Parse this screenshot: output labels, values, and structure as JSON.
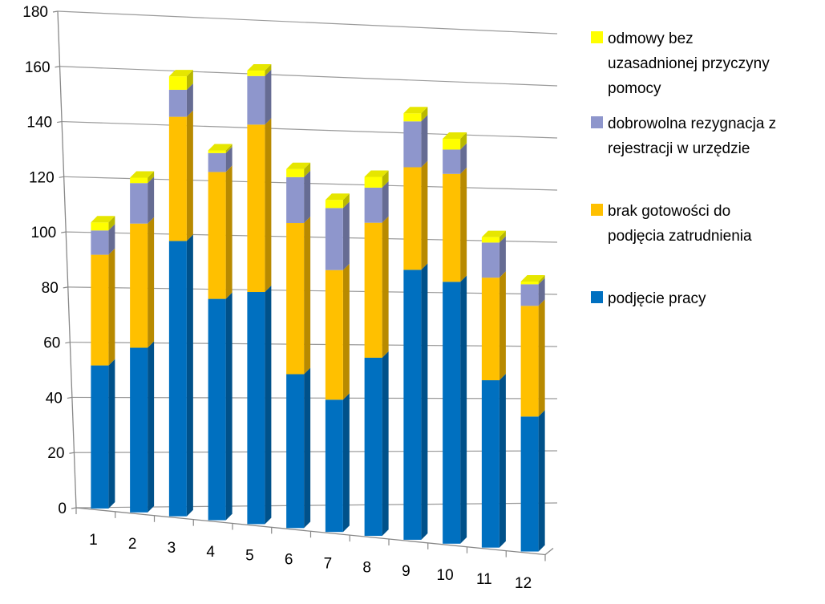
{
  "chart_data": {
    "type": "bar",
    "stacked": true,
    "three_d": true,
    "categories": [
      "1",
      "2",
      "3",
      "4",
      "5",
      "6",
      "7",
      "8",
      "9",
      "10",
      "11",
      "12"
    ],
    "series": [
      {
        "name": "podjęcie pracy",
        "color": "#0070C0",
        "values": [
          53,
          61,
          102,
          82,
          86,
          57,
          49,
          66,
          100,
          97,
          62,
          50
        ]
      },
      {
        "name": "brak gotowości do podjęcia zatrudnienia",
        "color": "#FFC000",
        "values": [
          41,
          46,
          46,
          47,
          62,
          56,
          48,
          50,
          38,
          40,
          38,
          41
        ]
      },
      {
        "name": "dobrowolna rezygnacja z rejestracji w urzędzie",
        "color": "#8E96CC",
        "values": [
          9,
          15,
          10,
          7,
          18,
          17,
          23,
          13,
          17,
          9,
          13,
          8
        ]
      },
      {
        "name": "odmowy bez uzasadnionej przyczyny pomocy",
        "color": "#FFFF00",
        "values": [
          3,
          2,
          5,
          1,
          2,
          3,
          3,
          4,
          3,
          4,
          2,
          1
        ]
      }
    ],
    "ylim": [
      0,
      180
    ],
    "yticks": [
      "0",
      "20",
      "40",
      "60",
      "80",
      "100",
      "120",
      "140",
      "160",
      "180"
    ],
    "grid": true,
    "legend_position": "right",
    "legend": [
      {
        "series_index": 3,
        "lines": [
          "odmowy bez",
          "uzasadnionej przyczyny",
          "pomocy"
        ]
      },
      {
        "series_index": 2,
        "lines": [
          "dobrowolna rezygnacja z",
          "rejestracji w urzędzie"
        ]
      },
      {
        "series_index": 1,
        "lines": [
          "brak gotowości do",
          "podjęcia zatrudnienia"
        ]
      },
      {
        "series_index": 0,
        "lines": [
          "podjęcie pracy"
        ]
      }
    ],
    "title": "",
    "xlabel": "",
    "ylabel": ""
  }
}
